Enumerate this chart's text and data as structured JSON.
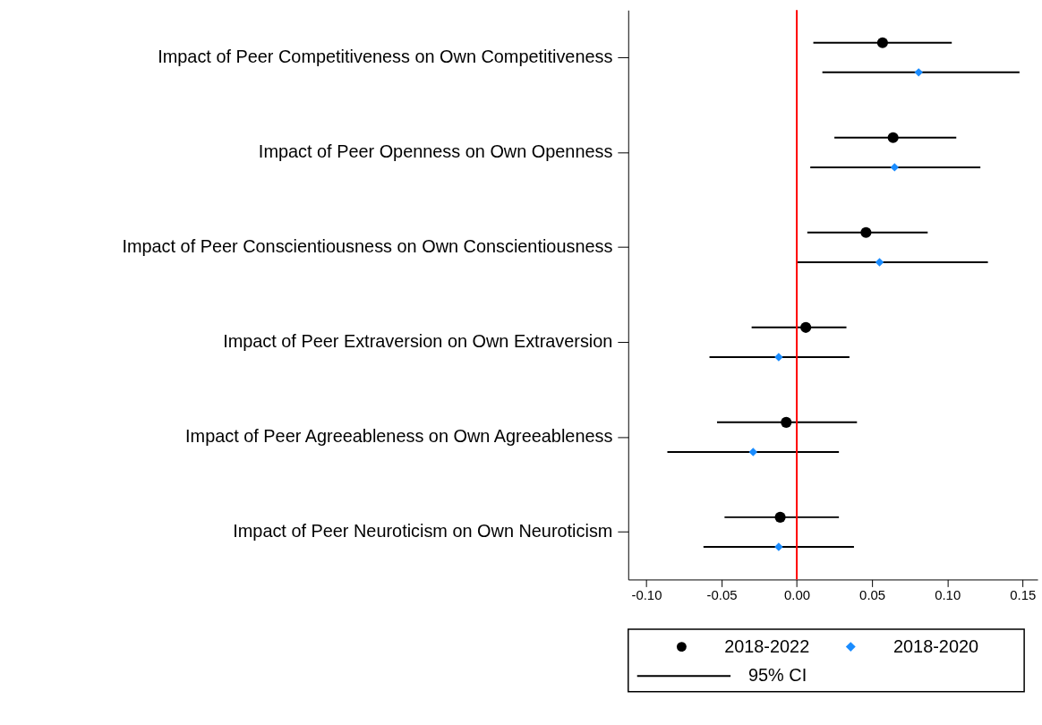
{
  "chart_data": {
    "type": "scatter",
    "orientation": "horizontal",
    "categories": [
      "Impact of Peer Competitiveness on Own Competitiveness",
      "Impact of Peer Openness on Own Openness",
      "Impact of Peer Conscientiousness on Own Conscientiousness",
      "Impact of Peer Extraversion on Own Extraversion",
      "Impact of Peer Agreeableness on Own Agreeableness",
      "Impact of Peer Neuroticism on Own Neuroticism"
    ],
    "xlim": [
      -0.112,
      0.16
    ],
    "xticks": [
      {
        "value": -0.1,
        "label": "-0.10"
      },
      {
        "value": -0.05,
        "label": "-0.05"
      },
      {
        "value": 0,
        "label": "0.00"
      },
      {
        "value": 0.05,
        "label": "0.05"
      },
      {
        "value": 0.1,
        "label": "0.10"
      },
      {
        "value": 0.15,
        "label": "0.15"
      }
    ],
    "grid": false,
    "legend": "bottom",
    "ref_lines": [
      {
        "axis": "x",
        "value": 0,
        "color": "#ff0000"
      }
    ],
    "annotations": [
      "95% CI"
    ],
    "series": [
      {
        "name": "2018-2022",
        "color": "#000000",
        "marker": "circle",
        "values": [
          0.057,
          0.064,
          0.046,
          0.006,
          -0.007,
          -0.011
        ],
        "errors": [
          [
            0.011,
            0.103
          ],
          [
            0.025,
            0.106
          ],
          [
            0.007,
            0.087
          ],
          [
            -0.03,
            0.033
          ],
          [
            -0.053,
            0.04
          ],
          [
            -0.048,
            0.028
          ]
        ]
      },
      {
        "name": "2018-2020",
        "color": "#1a8cff",
        "marker": "diamond",
        "values": [
          0.081,
          0.065,
          0.055,
          -0.012,
          -0.029,
          -0.012
        ],
        "errors": [
          [
            0.017,
            0.148
          ],
          [
            0.009,
            0.122
          ],
          [
            0.0,
            0.127
          ],
          [
            -0.058,
            0.035
          ],
          [
            -0.086,
            0.028
          ],
          [
            -0.062,
            0.038
          ]
        ]
      }
    ]
  }
}
